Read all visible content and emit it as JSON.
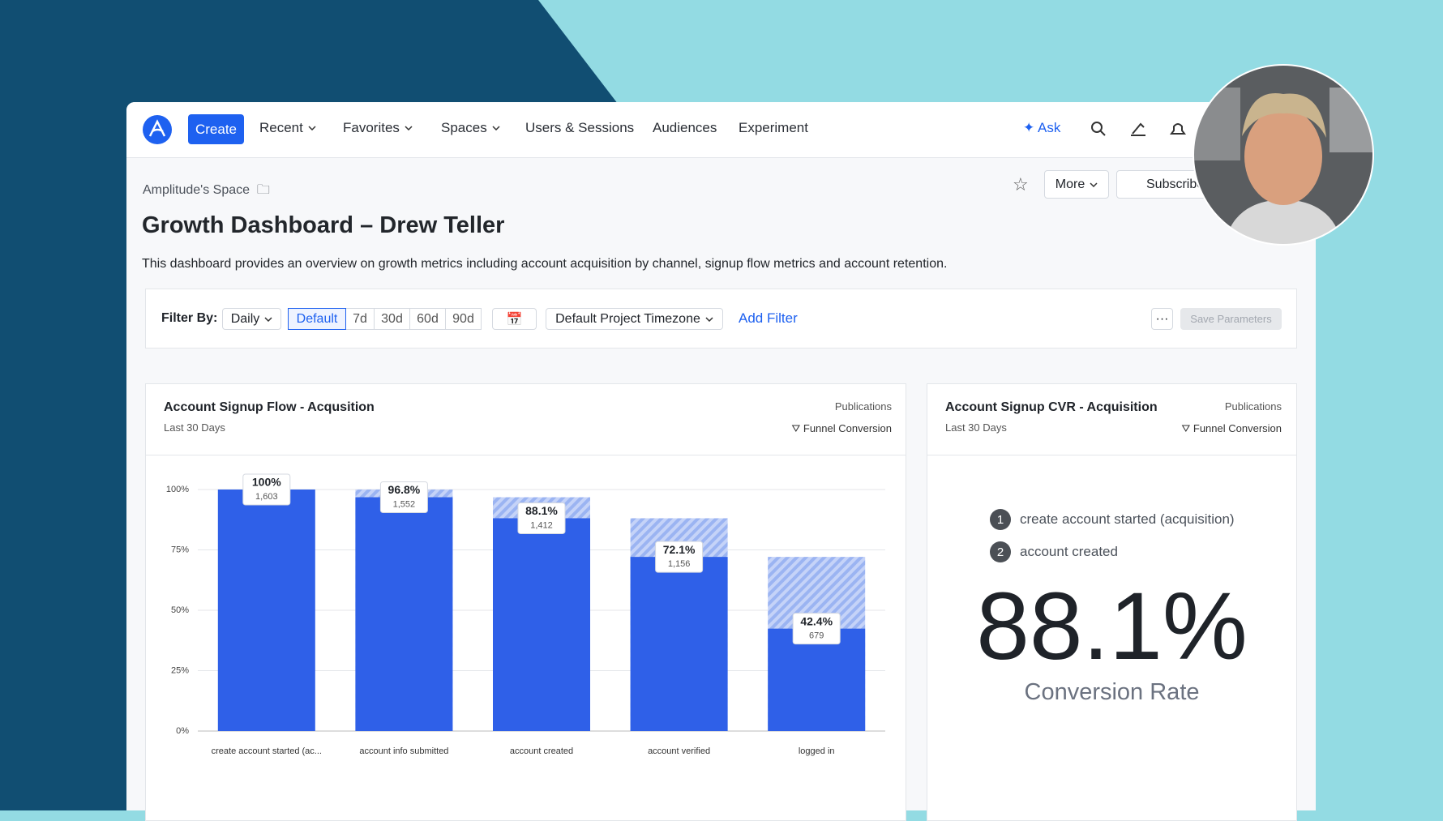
{
  "nav": {
    "create": "Create",
    "items": [
      "Recent",
      "Favorites",
      "Spaces",
      "Users & Sessions",
      "Audiences",
      "Experiment"
    ],
    "ask": "Ask"
  },
  "header": {
    "breadcrumb": "Amplitude's Space",
    "more": "More",
    "subscribe": "Subscribe",
    "title": "Growth Dashboard – Drew Teller",
    "description": "This dashboard provides an overview on growth metrics including account acquisition by channel, signup flow metrics and account retention."
  },
  "filters": {
    "label": "Filter By:",
    "interval": "Daily",
    "ranges": [
      "Default",
      "7d",
      "30d",
      "60d",
      "90d"
    ],
    "timezone": "Default Project Timezone",
    "add": "Add Filter",
    "save": "Save Parameters"
  },
  "funnel_chart": {
    "type": "bar",
    "title": "Account Signup Flow - Acqusition",
    "subtitle": "Last 30 Days",
    "space": "Publications",
    "chart_kind": "Funnel Conversion",
    "categories": [
      "create account started (ac...",
      "account info submitted",
      "account created",
      "account verified",
      "logged in"
    ],
    "values": [
      100,
      96.8,
      88.1,
      72.1,
      42.4
    ],
    "value_labels": [
      "100%",
      "96.8%",
      "88.1%",
      "72.1%",
      "42.4%"
    ],
    "counts": [
      "1,603",
      "1,552",
      "1,412",
      "1,156",
      "679"
    ],
    "color": "#2f60e8",
    "ylim": [
      0,
      100
    ],
    "yticks": [
      {
        "value": 0,
        "label": "0%"
      },
      {
        "value": 25,
        "label": "25%"
      },
      {
        "value": 50,
        "label": "50%"
      },
      {
        "value": 75,
        "label": "75%"
      },
      {
        "value": 100,
        "label": "100%"
      }
    ],
    "grid": true
  },
  "cvr_card": {
    "title": "Account Signup CVR - Acquisition",
    "subtitle": "Last 30 Days",
    "space": "Publications",
    "chart_kind": "Funnel Conversion",
    "steps": [
      {
        "number": 1,
        "label": "create account started (acquisition)"
      },
      {
        "number": 2,
        "label": "account created"
      }
    ],
    "value": "88.1%",
    "caption": "Conversion Rate"
  }
}
